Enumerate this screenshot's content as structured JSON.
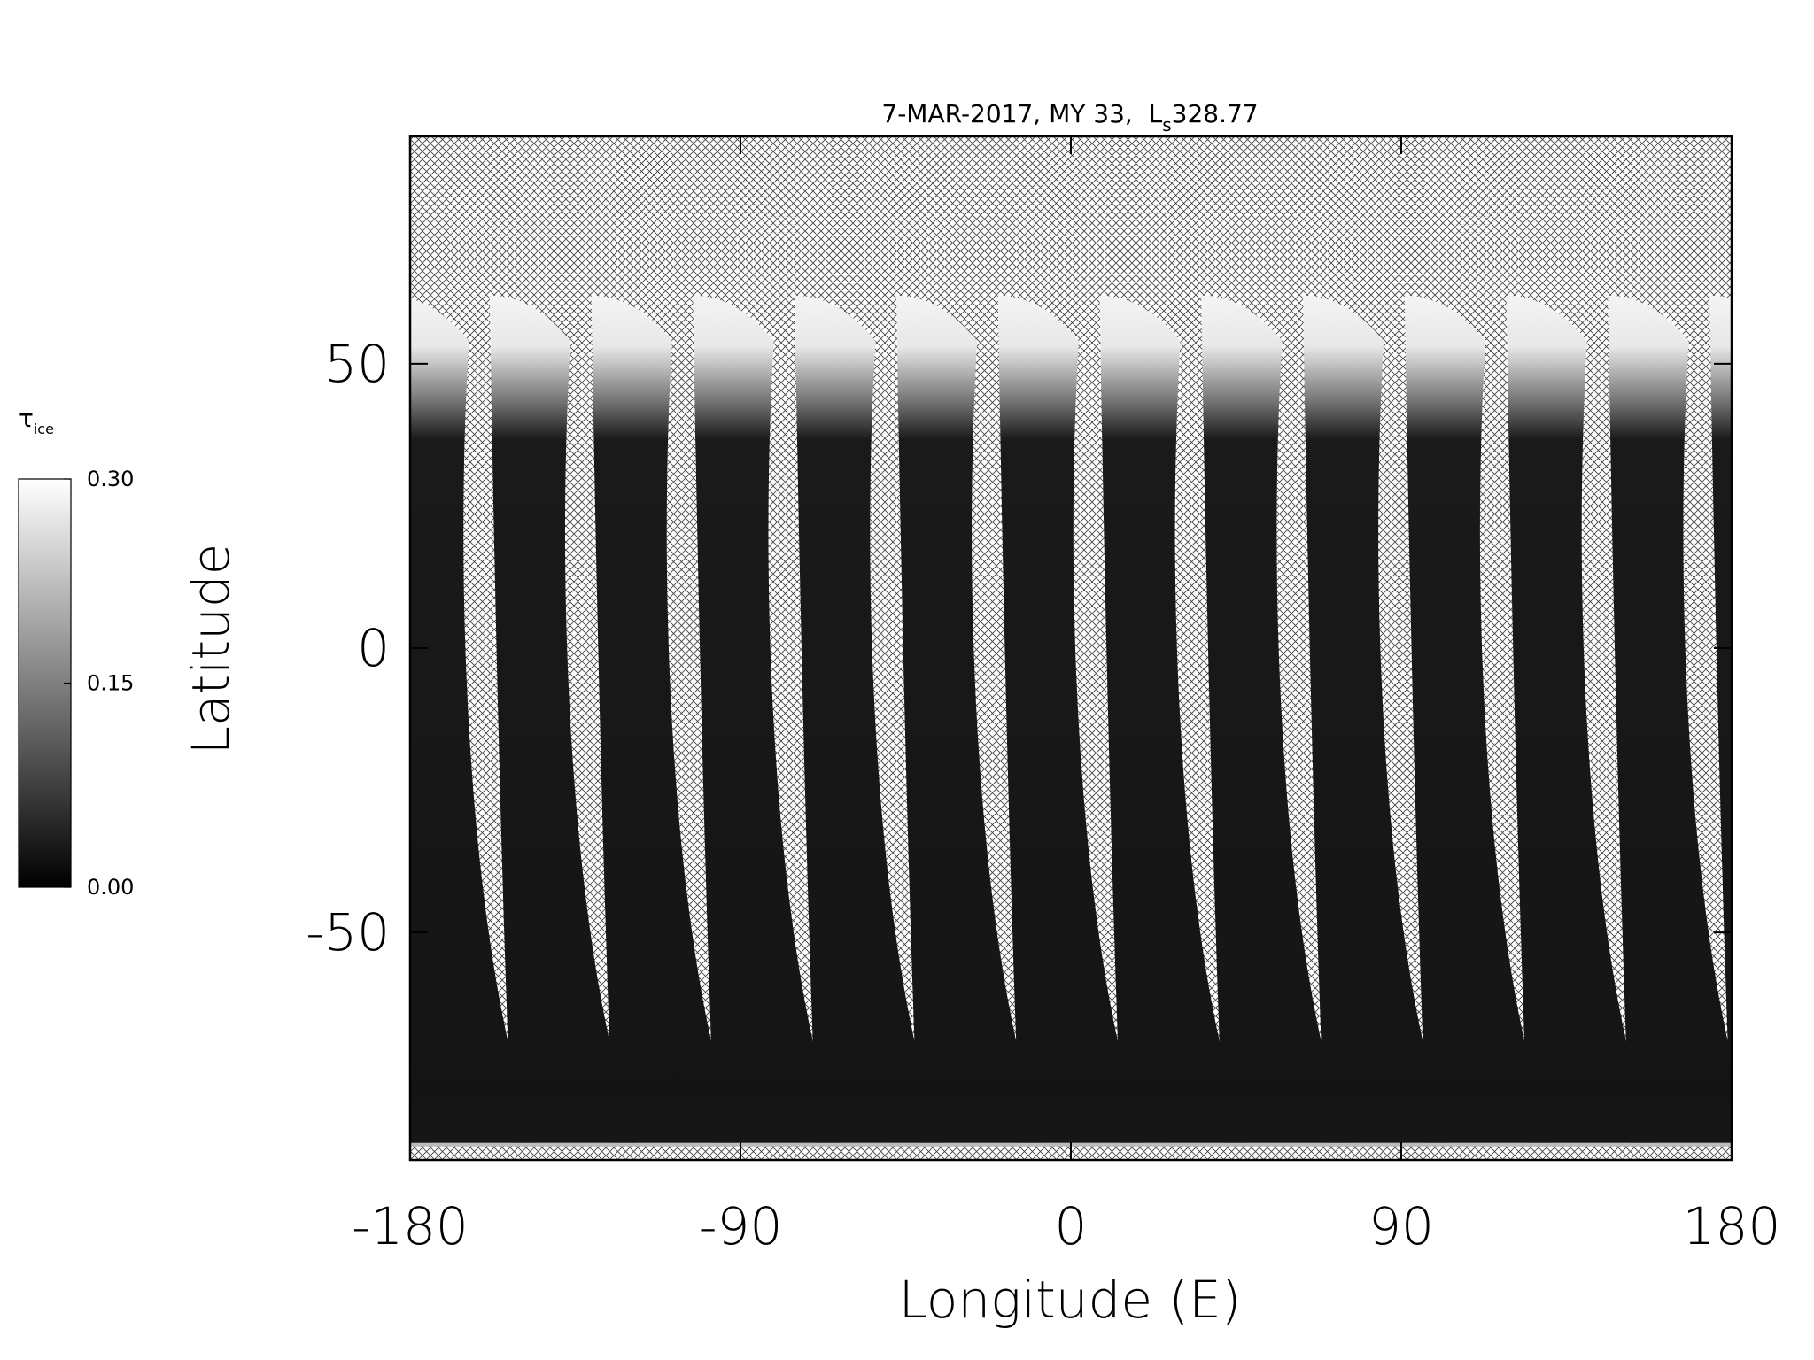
{
  "chart_data": {
    "type": "map",
    "title": "7-MAR-2017, MY 33,  L",
    "title_subscript": "s",
    "title_value": "328.77",
    "xlabel": "Longitude (E)",
    "ylabel": "Latitude",
    "xlim": [
      -180,
      180
    ],
    "ylim": [
      -90,
      90
    ],
    "xticks": [
      -180,
      -90,
      0,
      90,
      180
    ],
    "yticks": [
      -50,
      0,
      50
    ],
    "colorbar": {
      "label": "τ",
      "label_subscript": "ice",
      "clim": [
        0,
        0.3
      ],
      "ticks": [
        {
          "value": 0,
          "label": "0.00"
        },
        {
          "value": 0.15,
          "label": "0.15"
        },
        {
          "value": 0.3,
          "label": "0.30"
        }
      ],
      "colors": [
        "#000000",
        "#ffffff"
      ]
    }
  }
}
